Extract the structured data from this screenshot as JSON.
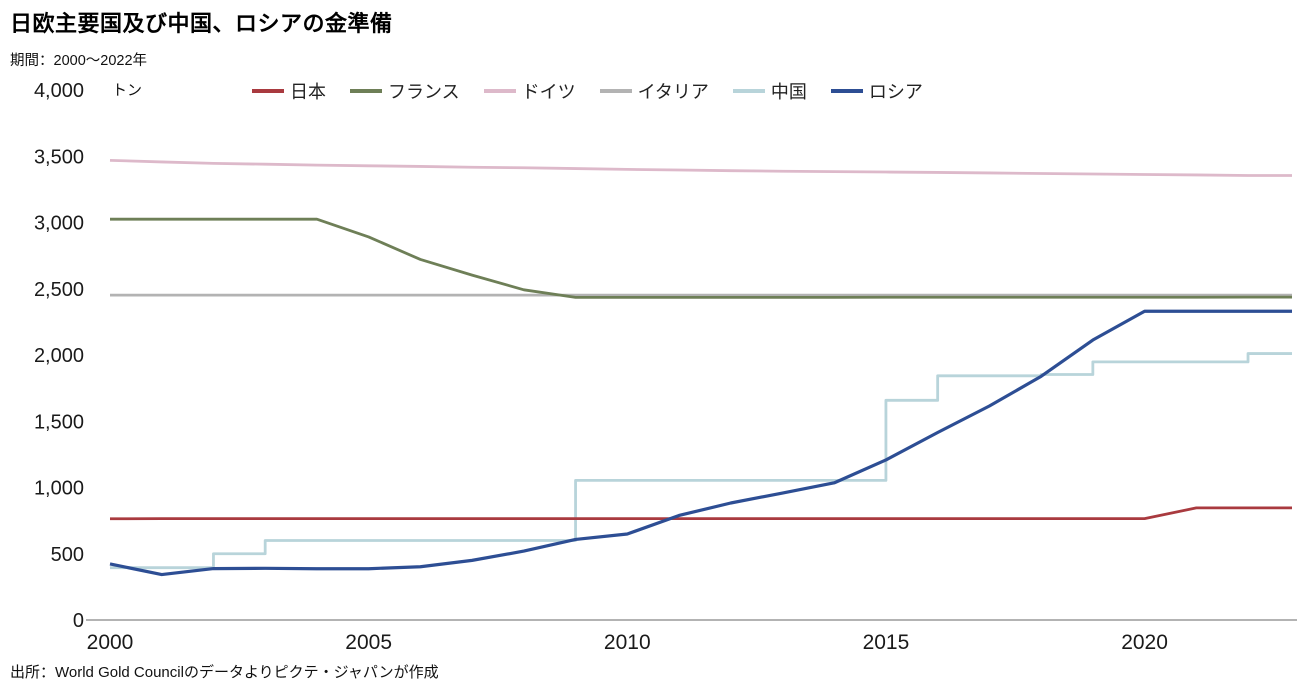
{
  "header": {
    "title": "日欧主要国及び中国、ロシアの金準備",
    "period": "期間：2000～2022年",
    "unit": "トン"
  },
  "footer": {
    "source": "出所：World Gold Councilのデータよりピクテ・ジャパンが作成"
  },
  "chart_data": {
    "type": "line",
    "title": "日欧主要国及び中国、ロシアの金準備",
    "subtitle": "期間：2000～2022年",
    "ylabel": "トン",
    "xlabel": "",
    "grid": false,
    "legend_position": "top",
    "xlim": [
      2000,
      2022.85
    ],
    "ylim": [
      0,
      4000
    ],
    "yticks": [
      0,
      500,
      1000,
      1500,
      2000,
      2500,
      3000,
      3500,
      4000
    ],
    "xticks": [
      2000,
      2005,
      2010,
      2015,
      2020
    ],
    "x": [
      2000,
      2001,
      2002,
      2003,
      2004,
      2005,
      2006,
      2007,
      2008,
      2009,
      2010,
      2011,
      2012,
      2013,
      2014,
      2015,
      2016,
      2017,
      2018,
      2019,
      2020,
      2021,
      2022
    ],
    "draw_order": [
      "germany",
      "italy",
      "france",
      "china",
      "japan",
      "russia"
    ],
    "series": [
      {
        "id": "japan",
        "label": "日本",
        "color": "#a93a3f",
        "width": 2.8,
        "step": false,
        "values": [
          764,
          765,
          765,
          765,
          765,
          765,
          765,
          765,
          765,
          765,
          765,
          765,
          765,
          765,
          765,
          765,
          765,
          765,
          765,
          765,
          765,
          846,
          846
        ]
      },
      {
        "id": "france",
        "label": "フランス",
        "color": "#6e7f57",
        "width": 2.8,
        "step": false,
        "values": [
          3025,
          3025,
          3025,
          3025,
          3025,
          2891,
          2721,
          2603,
          2492,
          2435,
          2435,
          2435,
          2435,
          2435,
          2435,
          2436,
          2436,
          2436,
          2436,
          2436,
          2436,
          2436,
          2437
        ]
      },
      {
        "id": "germany",
        "label": "ドイツ",
        "color": "#ddb9ca",
        "width": 2.8,
        "step": false,
        "values": [
          3469,
          3457,
          3446,
          3440,
          3433,
          3428,
          3423,
          3417,
          3413,
          3407,
          3401,
          3396,
          3391,
          3387,
          3384,
          3381,
          3378,
          3374,
          3370,
          3366,
          3362,
          3359,
          3355
        ]
      },
      {
        "id": "italy",
        "label": "イタリア",
        "color": "#b3b3b3",
        "width": 2.8,
        "step": false,
        "values": [
          2452,
          2452,
          2452,
          2452,
          2452,
          2452,
          2452,
          2452,
          2452,
          2452,
          2452,
          2452,
          2452,
          2452,
          2452,
          2452,
          2452,
          2452,
          2452,
          2452,
          2452,
          2452,
          2452
        ]
      },
      {
        "id": "china",
        "label": "中国",
        "color": "#b8d4da",
        "width": 2.8,
        "step": true,
        "values": [
          395,
          395,
          500,
          600,
          600,
          600,
          600,
          600,
          600,
          1054,
          1054,
          1054,
          1054,
          1054,
          1054,
          1658,
          1843,
          1843,
          1853,
          1948,
          1948,
          1948,
          2011
        ]
      },
      {
        "id": "russia",
        "label": "ロシア",
        "color": "#2d4e94",
        "width": 3.2,
        "step": false,
        "values": [
          423,
          343,
          388,
          390,
          387,
          387,
          402,
          450,
          520,
          608,
          649,
          789,
          883,
          958,
          1035,
          1208,
          1415,
          1615,
          1839,
          2113,
          2330,
          2330,
          2330
        ]
      }
    ]
  }
}
